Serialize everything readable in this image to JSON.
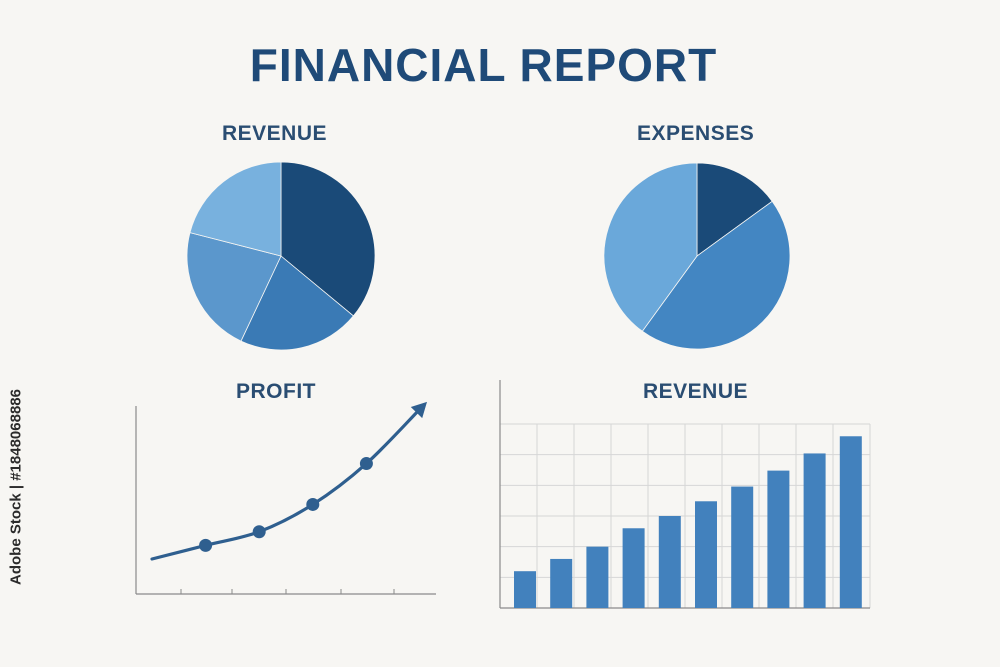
{
  "title": "FINANCIAL REPORT",
  "side_text": "Adobe Stock | #1848068886",
  "colors": {
    "dark": "#1a4a78",
    "mid": "#3f7fba",
    "light": "#78b1de",
    "pale": "#8fc0e6",
    "axis": "#8a8a8a",
    "grid": "#d6d6d6"
  },
  "chart_data": [
    {
      "type": "pie",
      "title": "REVENUE",
      "slices": [
        {
          "value": 36,
          "color": "#1a4a78"
        },
        {
          "value": 21,
          "color": "#3a7ab5"
        },
        {
          "value": 22,
          "color": "#5b97cc"
        },
        {
          "value": 21,
          "color": "#78b1de"
        }
      ]
    },
    {
      "type": "pie",
      "title": "EXPENSES",
      "slices": [
        {
          "value": 15,
          "color": "#1a4a78"
        },
        {
          "value": 45,
          "color": "#4386c2"
        },
        {
          "value": 40,
          "color": "#6aa8da"
        }
      ]
    },
    {
      "type": "line",
      "title": "PROFIT",
      "x": [
        1,
        2,
        3,
        4,
        5,
        6
      ],
      "y": [
        1,
        2,
        3,
        5,
        8,
        12
      ],
      "markers": [
        false,
        true,
        true,
        true,
        true,
        false
      ],
      "arrow_end": true
    },
    {
      "type": "bar",
      "title": "REVENUE",
      "values": [
        3,
        4,
        5,
        6.5,
        7.5,
        8.7,
        9.9,
        11.2,
        12.6,
        14
      ],
      "ylim": [
        0,
        15
      ]
    }
  ]
}
